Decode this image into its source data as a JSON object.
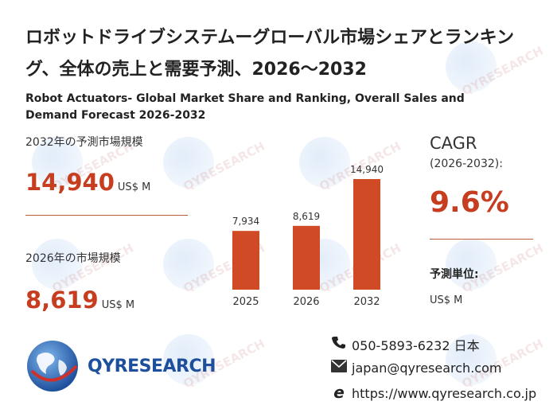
{
  "title_ja": "ロボットドライブシステムーグローバル市場シェアとランキング、全体の売上と需要予測、2026～2032",
  "title_en": "Robot Actuators- Global Market Share and Ranking, Overall Sales and Demand Forecast 2026-2032",
  "left_panel": {
    "forecast_label": "2032年の予測市場規模",
    "forecast_value": "14,940",
    "forecast_unit": "US$ M",
    "current_label": "2026年の市場規模",
    "current_value": "8,619",
    "current_unit": "US$ M"
  },
  "chart_data": {
    "type": "bar",
    "categories": [
      "2025",
      "2026",
      "2032"
    ],
    "values": [
      7934,
      8619,
      14940
    ],
    "data_labels": [
      "7,934",
      "8,619",
      "14,940"
    ],
    "bar_color": "#d04a25",
    "title": "",
    "xlabel": "",
    "ylabel": "",
    "ylim": [
      0,
      14940
    ],
    "grid": false
  },
  "right_panel": {
    "cagr_title": "CAGR",
    "cagr_period": "(2026-2032):",
    "cagr_value": "9.6%",
    "unit_label": "予測単位:",
    "unit_value": "US$ M"
  },
  "brand": {
    "logo_text": "QYRESEARCH",
    "watermark_text": "QYRESEARCH",
    "accent_color": "#c63d1f",
    "brand_color": "#1d4f9c"
  },
  "contact": {
    "phone": "050-5893-6232 日本",
    "email": "japan@qyresearch.com",
    "website": "https://www.qyresearch.co.jp",
    "phone_icon": "phone-icon",
    "email_icon": "envelope-icon",
    "web_icon": "browser-e-icon"
  }
}
